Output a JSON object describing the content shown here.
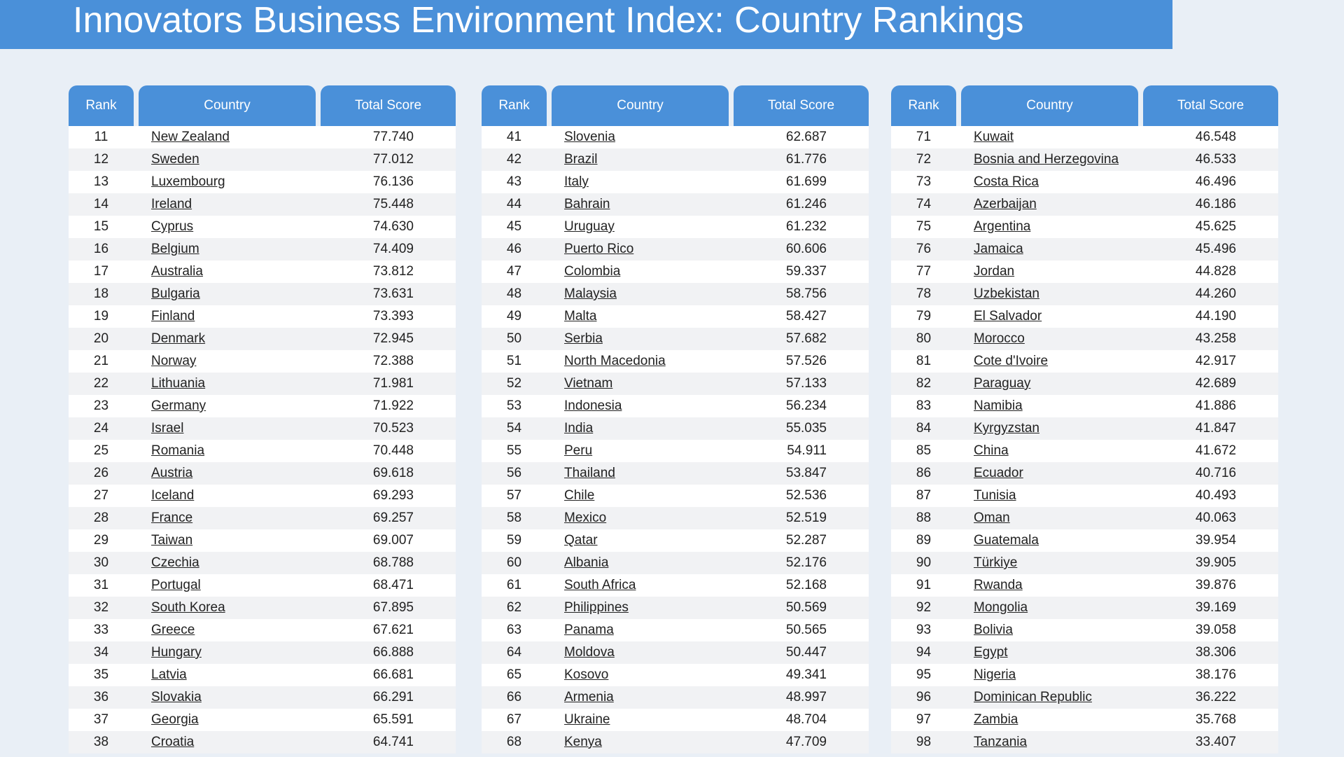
{
  "header": {
    "title": "Innovators Business Environment Index: Country Rankings"
  },
  "tables": [
    {
      "columns": [
        "Rank",
        "Country",
        "Total Score"
      ],
      "rows": [
        [
          "11",
          "New Zealand",
          "77.740"
        ],
        [
          "12",
          "Sweden",
          "77.012"
        ],
        [
          "13",
          "Luxembourg",
          "76.136"
        ],
        [
          "14",
          "Ireland",
          "75.448"
        ],
        [
          "15",
          "Cyprus",
          "74.630"
        ],
        [
          "16",
          "Belgium",
          "74.409"
        ],
        [
          "17",
          "Australia",
          "73.812"
        ],
        [
          "18",
          "Bulgaria",
          "73.631"
        ],
        [
          "19",
          "Finland",
          "73.393"
        ],
        [
          "20",
          "Denmark",
          "72.945"
        ],
        [
          "21",
          "Norway",
          "72.388"
        ],
        [
          "22",
          "Lithuania",
          "71.981"
        ],
        [
          "23",
          "Germany",
          "71.922"
        ],
        [
          "24",
          "Israel",
          "70.523"
        ],
        [
          "25",
          "Romania",
          "70.448"
        ],
        [
          "26",
          "Austria",
          "69.618"
        ],
        [
          "27",
          "Iceland",
          "69.293"
        ],
        [
          "28",
          "France",
          "69.257"
        ],
        [
          "29",
          "Taiwan",
          "69.007"
        ],
        [
          "30",
          "Czechia",
          "68.788"
        ],
        [
          "31",
          "Portugal",
          "68.471"
        ],
        [
          "32",
          "South Korea",
          "67.895"
        ],
        [
          "33",
          "Greece",
          "67.621"
        ],
        [
          "34",
          "Hungary",
          "66.888"
        ],
        [
          "35",
          "Latvia",
          "66.681"
        ],
        [
          "36",
          "Slovakia",
          "66.291"
        ],
        [
          "37",
          "Georgia",
          "65.591"
        ],
        [
          "38",
          "Croatia",
          "64.741"
        ]
      ]
    },
    {
      "columns": [
        "Rank",
        "Country",
        "Total Score"
      ],
      "rows": [
        [
          "41",
          "Slovenia",
          "62.687"
        ],
        [
          "42",
          "Brazil",
          "61.776"
        ],
        [
          "43",
          "Italy",
          "61.699"
        ],
        [
          "44",
          "Bahrain",
          "61.246"
        ],
        [
          "45",
          "Uruguay",
          "61.232"
        ],
        [
          "46",
          "Puerto Rico",
          "60.606"
        ],
        [
          "47",
          "Colombia",
          "59.337"
        ],
        [
          "48",
          "Malaysia",
          "58.756"
        ],
        [
          "49",
          "Malta",
          "58.427"
        ],
        [
          "50",
          "Serbia",
          "57.682"
        ],
        [
          "51",
          "North Macedonia",
          "57.526"
        ],
        [
          "52",
          "Vietnam",
          "57.133"
        ],
        [
          "53",
          "Indonesia",
          "56.234"
        ],
        [
          "54",
          "India",
          "55.035"
        ],
        [
          "55",
          "Peru",
          "54.911"
        ],
        [
          "56",
          "Thailand",
          "53.847"
        ],
        [
          "57",
          "Chile",
          "52.536"
        ],
        [
          "58",
          "Mexico",
          "52.519"
        ],
        [
          "59",
          "Qatar",
          "52.287"
        ],
        [
          "60",
          "Albania",
          "52.176"
        ],
        [
          "61",
          "South Africa",
          "52.168"
        ],
        [
          "62",
          "Philippines",
          "50.569"
        ],
        [
          "63",
          "Panama",
          "50.565"
        ],
        [
          "64",
          "Moldova",
          "50.447"
        ],
        [
          "65",
          "Kosovo",
          "49.341"
        ],
        [
          "66",
          "Armenia",
          "48.997"
        ],
        [
          "67",
          "Ukraine",
          "48.704"
        ],
        [
          "68",
          "Kenya",
          "47.709"
        ]
      ]
    },
    {
      "columns": [
        "Rank",
        "Country",
        "Total Score"
      ],
      "rows": [
        [
          "71",
          "Kuwait",
          "46.548"
        ],
        [
          "72",
          "Bosnia and Herzegovina",
          "46.533"
        ],
        [
          "73",
          "Costa Rica",
          "46.496"
        ],
        [
          "74",
          "Azerbaijan",
          "46.186"
        ],
        [
          "75",
          "Argentina",
          "45.625"
        ],
        [
          "76",
          "Jamaica",
          "45.496"
        ],
        [
          "77",
          "Jordan",
          "44.828"
        ],
        [
          "78",
          "Uzbekistan",
          "44.260"
        ],
        [
          "79",
          "El Salvador",
          "44.190"
        ],
        [
          "80",
          "Morocco",
          "43.258"
        ],
        [
          "81",
          "Cote d'Ivoire",
          "42.917"
        ],
        [
          "82",
          "Paraguay",
          "42.689"
        ],
        [
          "83",
          "Namibia",
          "41.886"
        ],
        [
          "84",
          "Kyrgyzstan",
          "41.847"
        ],
        [
          "85",
          "China",
          "41.672"
        ],
        [
          "86",
          "Ecuador",
          "40.716"
        ],
        [
          "87",
          "Tunisia",
          "40.493"
        ],
        [
          "88",
          "Oman",
          "40.063"
        ],
        [
          "89",
          "Guatemala",
          "39.954"
        ],
        [
          "90",
          "Türkiye",
          "39.905"
        ],
        [
          "91",
          "Rwanda",
          "39.876"
        ],
        [
          "92",
          "Mongolia",
          "39.169"
        ],
        [
          "93",
          "Bolivia",
          "39.058"
        ],
        [
          "94",
          "Egypt",
          "38.306"
        ],
        [
          "95",
          "Nigeria",
          "38.176"
        ],
        [
          "96",
          "Dominican Republic",
          "36.222"
        ],
        [
          "97",
          "Zambia",
          "35.768"
        ],
        [
          "98",
          "Tanzania",
          "33.407"
        ]
      ]
    }
  ]
}
